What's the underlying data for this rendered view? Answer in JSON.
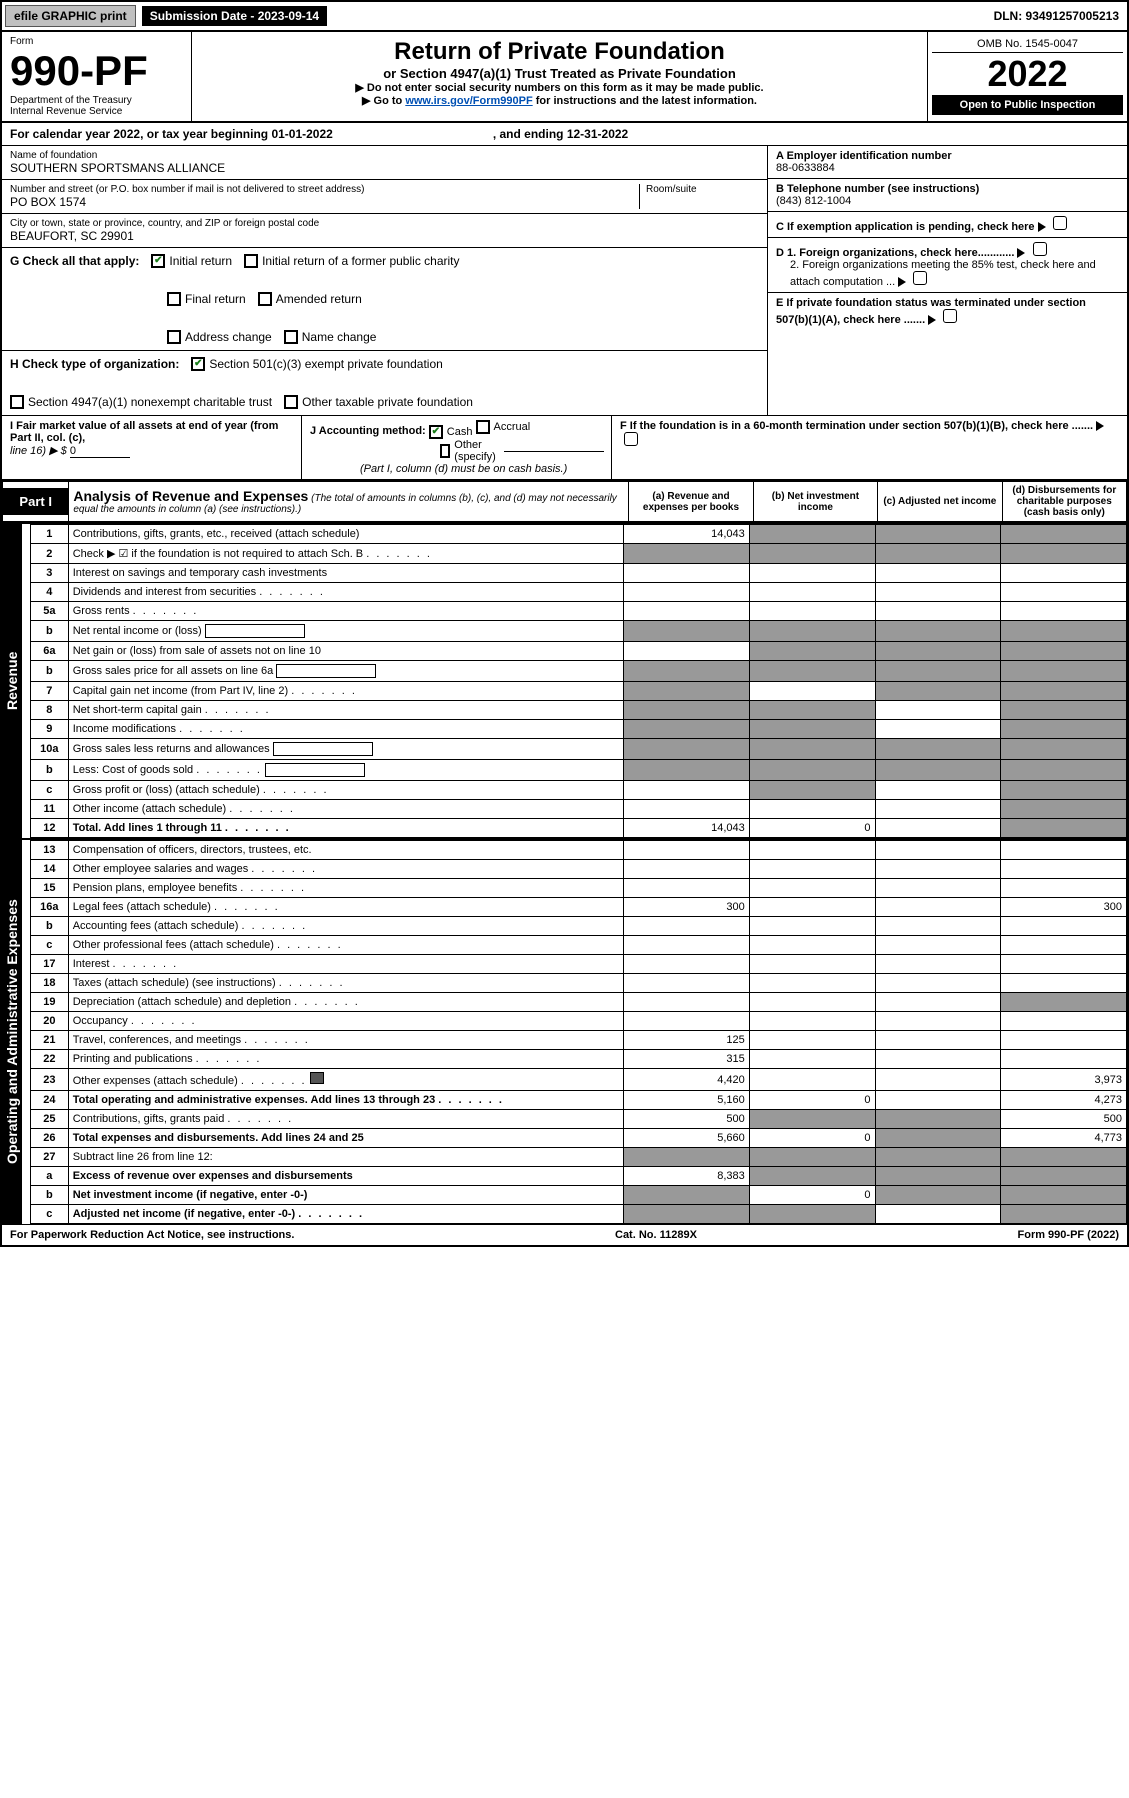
{
  "topbar": {
    "efile": "efile GRAPHIC print",
    "sub_label": "Submission Date - 2023-09-14",
    "dln": "DLN: 93491257005213"
  },
  "header": {
    "form_label": "Form",
    "form_number": "990-PF",
    "dept": "Department of the Treasury",
    "irs": "Internal Revenue Service",
    "title": "Return of Private Foundation",
    "subtitle": "or Section 4947(a)(1) Trust Treated as Private Foundation",
    "instr1": "▶ Do not enter social security numbers on this form as it may be made public.",
    "instr2_pre": "▶ Go to ",
    "instr2_link": "www.irs.gov/Form990PF",
    "instr2_post": " for instructions and the latest information.",
    "omb": "OMB No. 1545-0047",
    "year": "2022",
    "inspection": "Open to Public Inspection"
  },
  "cal": {
    "pre": "For calendar year 2022, or tax year beginning 01-01-2022",
    "mid": ", and ending 12-31-2022"
  },
  "id": {
    "name_label": "Name of foundation",
    "name": "SOUTHERN SPORTSMANS ALLIANCE",
    "street_label": "Number and street (or P.O. box number if mail is not delivered to street address)",
    "street": "PO BOX 1574",
    "room_label": "Room/suite",
    "city_label": "City or town, state or province, country, and ZIP or foreign postal code",
    "city": "BEAUFORT, SC  29901",
    "A_label": "A Employer identification number",
    "A_val": "88-0633884",
    "B_label": "B Telephone number (see instructions)",
    "B_val": "(843) 812-1004",
    "C_label": "C If exemption application is pending, check here",
    "D1": "D 1. Foreign organizations, check here............",
    "D2": "2. Foreign organizations meeting the 85% test, check here and attach computation ...",
    "E": "E  If private foundation status was terminated under section 507(b)(1)(A), check here .......",
    "F": "F  If the foundation is in a 60-month termination under section 507(b)(1)(B), check here .......",
    "G_label": "G Check all that apply:",
    "initial": "Initial return",
    "initial_former": "Initial return of a former public charity",
    "final": "Final return",
    "amended": "Amended return",
    "address": "Address change",
    "name_change": "Name change",
    "H_label": "H Check type of organization:",
    "h_501c3": "Section 501(c)(3) exempt private foundation",
    "h_4947": "Section 4947(a)(1) nonexempt charitable trust",
    "h_other": "Other taxable private foundation",
    "I_label": "I Fair market value of all assets at end of year (from Part II, col. (c),",
    "I_line": "line 16) ▶ $",
    "I_val": "0",
    "J_label": "J Accounting method:",
    "J_cash": "Cash",
    "J_accrual": "Accrual",
    "J_other": "Other (specify)",
    "J_note": "(Part I, column (d) must be on cash basis.)"
  },
  "part1": {
    "label": "Part I",
    "title": "Analysis of Revenue and Expenses",
    "note": "(The total of amounts in columns (b), (c), and (d) may not necessarily equal the amounts in column (a) (see instructions).)",
    "col_a": "(a)   Revenue and expenses per books",
    "col_b": "(b)   Net investment income",
    "col_c": "(c)   Adjusted net income",
    "col_d": "(d)   Disbursements for charitable purposes (cash basis only)"
  },
  "sides": {
    "revenue": "Revenue",
    "expenses": "Operating and Administrative Expenses"
  },
  "rows": [
    {
      "n": "1",
      "d": "Contributions, gifts, grants, etc., received (attach schedule)",
      "a": "14,043",
      "b": "",
      "c": "",
      "dd": "",
      "shade_bcd": true
    },
    {
      "n": "2",
      "d": "Check ▶ ☑ if the foundation is not required to attach Sch. B",
      "dots": true,
      "shade_all": true
    },
    {
      "n": "3",
      "d": "Interest on savings and temporary cash investments"
    },
    {
      "n": "4",
      "d": "Dividends and interest from securities",
      "dots": true
    },
    {
      "n": "5a",
      "d": "Gross rents",
      "dots": true
    },
    {
      "n": "b",
      "d": "Net rental income or (loss)",
      "inline_box": true,
      "shade_all": true
    },
    {
      "n": "6a",
      "d": "Net gain or (loss) from sale of assets not on line 10",
      "shade_bcd": true
    },
    {
      "n": "b",
      "d": "Gross sales price for all assets on line 6a",
      "inline_box": true,
      "shade_all": true
    },
    {
      "n": "7",
      "d": "Capital gain net income (from Part IV, line 2)",
      "dots": true,
      "shade_acd": true
    },
    {
      "n": "8",
      "d": "Net short-term capital gain",
      "dots": true,
      "shade_abd": true
    },
    {
      "n": "9",
      "d": "Income modifications",
      "dots": true,
      "shade_abd": true
    },
    {
      "n": "10a",
      "d": "Gross sales less returns and allowances",
      "inline_box": true,
      "shade_all": true
    },
    {
      "n": "b",
      "d": "Less: Cost of goods sold",
      "dots": true,
      "inline_box": true,
      "shade_all": true
    },
    {
      "n": "c",
      "d": "Gross profit or (loss) (attach schedule)",
      "dots": true,
      "shade_bd": true
    },
    {
      "n": "11",
      "d": "Other income (attach schedule)",
      "dots": true,
      "shade_d": true
    },
    {
      "n": "12",
      "d": "Total. Add lines 1 through 11",
      "dots": true,
      "bold": true,
      "a": "14,043",
      "b": "0",
      "shade_d": true
    }
  ],
  "exp_rows": [
    {
      "n": "13",
      "d": "Compensation of officers, directors, trustees, etc."
    },
    {
      "n": "14",
      "d": "Other employee salaries and wages",
      "dots": true
    },
    {
      "n": "15",
      "d": "Pension plans, employee benefits",
      "dots": true
    },
    {
      "n": "16a",
      "d": "Legal fees (attach schedule)",
      "dots": true,
      "a": "300",
      "dd": "300"
    },
    {
      "n": "b",
      "d": "Accounting fees (attach schedule)",
      "dots": true
    },
    {
      "n": "c",
      "d": "Other professional fees (attach schedule)",
      "dots": true
    },
    {
      "n": "17",
      "d": "Interest",
      "dots": true
    },
    {
      "n": "18",
      "d": "Taxes (attach schedule) (see instructions)",
      "dots": true
    },
    {
      "n": "19",
      "d": "Depreciation (attach schedule) and depletion",
      "dots": true,
      "shade_d": true
    },
    {
      "n": "20",
      "d": "Occupancy",
      "dots": true
    },
    {
      "n": "21",
      "d": "Travel, conferences, and meetings",
      "dots": true,
      "a": "125"
    },
    {
      "n": "22",
      "d": "Printing and publications",
      "dots": true,
      "a": "315"
    },
    {
      "n": "23",
      "d": "Other expenses (attach schedule)",
      "dots": true,
      "icon": true,
      "a": "4,420",
      "dd": "3,973"
    },
    {
      "n": "24",
      "d": "Total operating and administrative expenses. Add lines 13 through 23",
      "dots": true,
      "bold": true,
      "a": "5,160",
      "b": "0",
      "dd": "4,273"
    },
    {
      "n": "25",
      "d": "Contributions, gifts, grants paid",
      "dots": true,
      "a": "500",
      "shade_bc": true,
      "dd": "500"
    },
    {
      "n": "26",
      "d": "Total expenses and disbursements. Add lines 24 and 25",
      "bold": true,
      "a": "5,660",
      "b": "0",
      "shade_c": true,
      "dd": "4,773"
    },
    {
      "n": "27",
      "d": "Subtract line 26 from line 12:",
      "shade_all": true
    },
    {
      "n": "a",
      "d": "Excess of revenue over expenses and disbursements",
      "bold": true,
      "a": "8,383",
      "shade_bcd": true
    },
    {
      "n": "b",
      "d": "Net investment income (if negative, enter -0-)",
      "bold": true,
      "shade_a": true,
      "b": "0",
      "shade_cd": true
    },
    {
      "n": "c",
      "d": "Adjusted net income (if negative, enter -0-)",
      "bold": true,
      "dots": true,
      "shade_ab": true,
      "shade_d": true
    }
  ],
  "footer": {
    "left": "For Paperwork Reduction Act Notice, see instructions.",
    "mid": "Cat. No. 11289X",
    "right": "Form 990-PF (2022)"
  }
}
